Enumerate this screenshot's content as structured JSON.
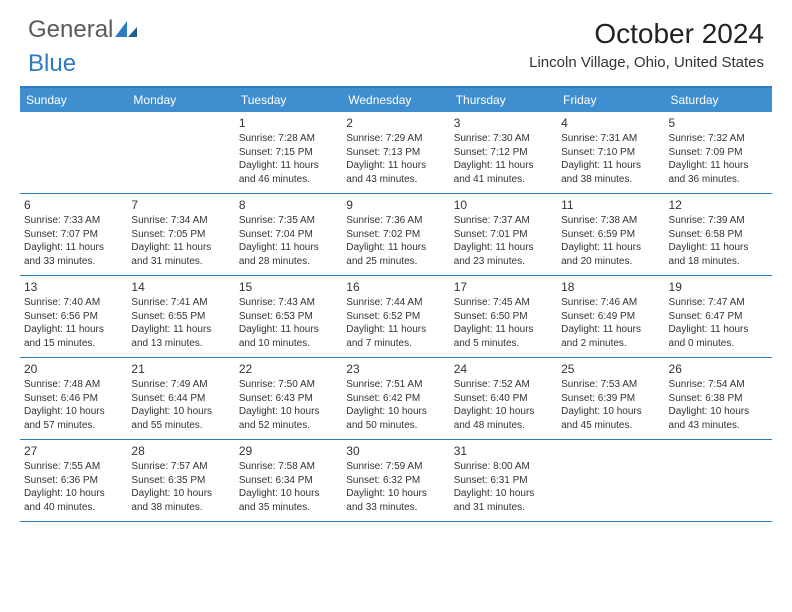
{
  "brand": {
    "general": "General",
    "blue": "Blue",
    "accent_color": "#2f7bbf",
    "header_bg": "#3f8fd0"
  },
  "header": {
    "month_title": "October 2024",
    "location": "Lincoln Village, Ohio, United States"
  },
  "calendar": {
    "days_of_week": [
      "Sunday",
      "Monday",
      "Tuesday",
      "Wednesday",
      "Thursday",
      "Friday",
      "Saturday"
    ],
    "weeks": [
      [
        null,
        null,
        {
          "num": "1",
          "sunrise": "Sunrise: 7:28 AM",
          "sunset": "Sunset: 7:15 PM",
          "daylight1": "Daylight: 11 hours",
          "daylight2": "and 46 minutes."
        },
        {
          "num": "2",
          "sunrise": "Sunrise: 7:29 AM",
          "sunset": "Sunset: 7:13 PM",
          "daylight1": "Daylight: 11 hours",
          "daylight2": "and 43 minutes."
        },
        {
          "num": "3",
          "sunrise": "Sunrise: 7:30 AM",
          "sunset": "Sunset: 7:12 PM",
          "daylight1": "Daylight: 11 hours",
          "daylight2": "and 41 minutes."
        },
        {
          "num": "4",
          "sunrise": "Sunrise: 7:31 AM",
          "sunset": "Sunset: 7:10 PM",
          "daylight1": "Daylight: 11 hours",
          "daylight2": "and 38 minutes."
        },
        {
          "num": "5",
          "sunrise": "Sunrise: 7:32 AM",
          "sunset": "Sunset: 7:09 PM",
          "daylight1": "Daylight: 11 hours",
          "daylight2": "and 36 minutes."
        }
      ],
      [
        {
          "num": "6",
          "sunrise": "Sunrise: 7:33 AM",
          "sunset": "Sunset: 7:07 PM",
          "daylight1": "Daylight: 11 hours",
          "daylight2": "and 33 minutes."
        },
        {
          "num": "7",
          "sunrise": "Sunrise: 7:34 AM",
          "sunset": "Sunset: 7:05 PM",
          "daylight1": "Daylight: 11 hours",
          "daylight2": "and 31 minutes."
        },
        {
          "num": "8",
          "sunrise": "Sunrise: 7:35 AM",
          "sunset": "Sunset: 7:04 PM",
          "daylight1": "Daylight: 11 hours",
          "daylight2": "and 28 minutes."
        },
        {
          "num": "9",
          "sunrise": "Sunrise: 7:36 AM",
          "sunset": "Sunset: 7:02 PM",
          "daylight1": "Daylight: 11 hours",
          "daylight2": "and 25 minutes."
        },
        {
          "num": "10",
          "sunrise": "Sunrise: 7:37 AM",
          "sunset": "Sunset: 7:01 PM",
          "daylight1": "Daylight: 11 hours",
          "daylight2": "and 23 minutes."
        },
        {
          "num": "11",
          "sunrise": "Sunrise: 7:38 AM",
          "sunset": "Sunset: 6:59 PM",
          "daylight1": "Daylight: 11 hours",
          "daylight2": "and 20 minutes."
        },
        {
          "num": "12",
          "sunrise": "Sunrise: 7:39 AM",
          "sunset": "Sunset: 6:58 PM",
          "daylight1": "Daylight: 11 hours",
          "daylight2": "and 18 minutes."
        }
      ],
      [
        {
          "num": "13",
          "sunrise": "Sunrise: 7:40 AM",
          "sunset": "Sunset: 6:56 PM",
          "daylight1": "Daylight: 11 hours",
          "daylight2": "and 15 minutes."
        },
        {
          "num": "14",
          "sunrise": "Sunrise: 7:41 AM",
          "sunset": "Sunset: 6:55 PM",
          "daylight1": "Daylight: 11 hours",
          "daylight2": "and 13 minutes."
        },
        {
          "num": "15",
          "sunrise": "Sunrise: 7:43 AM",
          "sunset": "Sunset: 6:53 PM",
          "daylight1": "Daylight: 11 hours",
          "daylight2": "and 10 minutes."
        },
        {
          "num": "16",
          "sunrise": "Sunrise: 7:44 AM",
          "sunset": "Sunset: 6:52 PM",
          "daylight1": "Daylight: 11 hours",
          "daylight2": "and 7 minutes."
        },
        {
          "num": "17",
          "sunrise": "Sunrise: 7:45 AM",
          "sunset": "Sunset: 6:50 PM",
          "daylight1": "Daylight: 11 hours",
          "daylight2": "and 5 minutes."
        },
        {
          "num": "18",
          "sunrise": "Sunrise: 7:46 AM",
          "sunset": "Sunset: 6:49 PM",
          "daylight1": "Daylight: 11 hours",
          "daylight2": "and 2 minutes."
        },
        {
          "num": "19",
          "sunrise": "Sunrise: 7:47 AM",
          "sunset": "Sunset: 6:47 PM",
          "daylight1": "Daylight: 11 hours",
          "daylight2": "and 0 minutes."
        }
      ],
      [
        {
          "num": "20",
          "sunrise": "Sunrise: 7:48 AM",
          "sunset": "Sunset: 6:46 PM",
          "daylight1": "Daylight: 10 hours",
          "daylight2": "and 57 minutes."
        },
        {
          "num": "21",
          "sunrise": "Sunrise: 7:49 AM",
          "sunset": "Sunset: 6:44 PM",
          "daylight1": "Daylight: 10 hours",
          "daylight2": "and 55 minutes."
        },
        {
          "num": "22",
          "sunrise": "Sunrise: 7:50 AM",
          "sunset": "Sunset: 6:43 PM",
          "daylight1": "Daylight: 10 hours",
          "daylight2": "and 52 minutes."
        },
        {
          "num": "23",
          "sunrise": "Sunrise: 7:51 AM",
          "sunset": "Sunset: 6:42 PM",
          "daylight1": "Daylight: 10 hours",
          "daylight2": "and 50 minutes."
        },
        {
          "num": "24",
          "sunrise": "Sunrise: 7:52 AM",
          "sunset": "Sunset: 6:40 PM",
          "daylight1": "Daylight: 10 hours",
          "daylight2": "and 48 minutes."
        },
        {
          "num": "25",
          "sunrise": "Sunrise: 7:53 AM",
          "sunset": "Sunset: 6:39 PM",
          "daylight1": "Daylight: 10 hours",
          "daylight2": "and 45 minutes."
        },
        {
          "num": "26",
          "sunrise": "Sunrise: 7:54 AM",
          "sunset": "Sunset: 6:38 PM",
          "daylight1": "Daylight: 10 hours",
          "daylight2": "and 43 minutes."
        }
      ],
      [
        {
          "num": "27",
          "sunrise": "Sunrise: 7:55 AM",
          "sunset": "Sunset: 6:36 PM",
          "daylight1": "Daylight: 10 hours",
          "daylight2": "and 40 minutes."
        },
        {
          "num": "28",
          "sunrise": "Sunrise: 7:57 AM",
          "sunset": "Sunset: 6:35 PM",
          "daylight1": "Daylight: 10 hours",
          "daylight2": "and 38 minutes."
        },
        {
          "num": "29",
          "sunrise": "Sunrise: 7:58 AM",
          "sunset": "Sunset: 6:34 PM",
          "daylight1": "Daylight: 10 hours",
          "daylight2": "and 35 minutes."
        },
        {
          "num": "30",
          "sunrise": "Sunrise: 7:59 AM",
          "sunset": "Sunset: 6:32 PM",
          "daylight1": "Daylight: 10 hours",
          "daylight2": "and 33 minutes."
        },
        {
          "num": "31",
          "sunrise": "Sunrise: 8:00 AM",
          "sunset": "Sunset: 6:31 PM",
          "daylight1": "Daylight: 10 hours",
          "daylight2": "and 31 minutes."
        },
        null,
        null
      ]
    ]
  },
  "styling": {
    "text_color": "#333333",
    "border_color": "#2f7bbf",
    "header_text_color": "#ffffff",
    "day_fontsize": 10,
    "dow_fontsize": 12
  }
}
